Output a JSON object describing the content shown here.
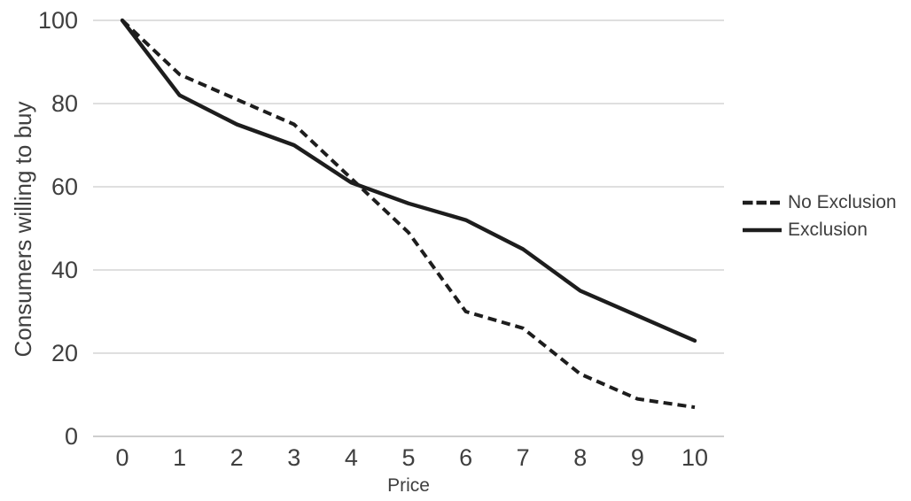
{
  "chart_data": {
    "type": "line",
    "title": "",
    "x": [
      0,
      1,
      2,
      3,
      4,
      5,
      6,
      7,
      8,
      9,
      10
    ],
    "series": [
      {
        "name": "No Exclusion",
        "style": "dashed",
        "values": [
          100,
          87,
          81,
          75,
          62,
          49,
          30,
          26,
          15,
          9,
          7
        ]
      },
      {
        "name": "Exclusion",
        "style": "solid",
        "values": [
          100,
          82,
          75,
          70,
          61,
          56,
          52,
          45,
          35,
          29,
          23
        ]
      }
    ],
    "xlabel": "Price",
    "ylabel": "Consumers willing to buy",
    "xlim": [
      0,
      10
    ],
    "ylim": [
      0,
      100
    ],
    "x_ticks": [
      0,
      1,
      2,
      3,
      4,
      5,
      6,
      7,
      8,
      9,
      10
    ],
    "y_ticks": [
      0,
      20,
      40,
      60,
      80,
      100
    ],
    "grid": "horizontal",
    "legend_position": "right",
    "crossing_point": {
      "x": 4.1,
      "y": 60
    }
  },
  "legend": {
    "items": [
      {
        "label": "No Exclusion",
        "marker": "dashed-line"
      },
      {
        "label": "Exclusion",
        "marker": "solid-line"
      }
    ]
  },
  "colors": {
    "series_stroke": "#1d1d1d",
    "gridline": "#cccccc",
    "axis_line": "#b0b0b0",
    "text": "#3f3f3f",
    "background": "#ffffff"
  }
}
